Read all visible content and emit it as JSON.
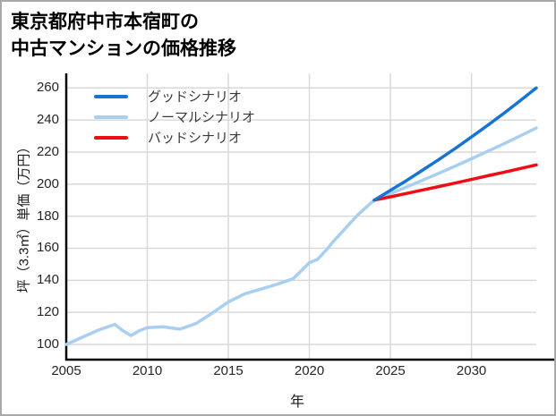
{
  "title": {
    "line1": "東京都府中市本宿町の",
    "line2": "中古マンションの価格推移"
  },
  "chart_data": {
    "type": "line",
    "xlabel": "年",
    "ylabel": "坪（3.3㎡）単価（万円）",
    "xticks": [
      2005,
      2010,
      2015,
      2020,
      2025,
      2030
    ],
    "yticks": [
      100,
      120,
      140,
      160,
      180,
      200,
      220,
      240,
      260
    ],
    "xlim": [
      2005,
      2035
    ],
    "ylim": [
      90,
      269
    ],
    "grid": true,
    "colors": {
      "good": "#1874d2",
      "normal": "#a8cff2",
      "bad": "#ee0d14",
      "gridline": "#d9d9d9",
      "spine": "#000000"
    },
    "legend": {
      "position": "upper-left",
      "entries": [
        "グッドシナリオ",
        "ノーマルシナリオ",
        "バッドシナリオ"
      ]
    },
    "history": {
      "color": "#a8cff2",
      "points": [
        [
          2005,
          100
        ],
        [
          2006,
          104.5
        ],
        [
          2007,
          109
        ],
        [
          2008,
          112.5
        ],
        [
          2008.5,
          108.5
        ],
        [
          2009,
          105.5
        ],
        [
          2009.5,
          108.5
        ],
        [
          2010,
          110.5
        ],
        [
          2011,
          111
        ],
        [
          2012,
          109.5
        ],
        [
          2013,
          113
        ],
        [
          2014,
          119.5
        ],
        [
          2015,
          126.5
        ],
        [
          2016,
          131.5
        ],
        [
          2017,
          134.5
        ],
        [
          2018,
          137.5
        ],
        [
          2019,
          141
        ],
        [
          2019.5,
          146
        ],
        [
          2020,
          151
        ],
        [
          2020.5,
          153
        ],
        [
          2021,
          158.5
        ],
        [
          2021.5,
          164.5
        ],
        [
          2022,
          170
        ],
        [
          2022.5,
          175.5
        ],
        [
          2023,
          181
        ],
        [
          2023.5,
          185.5
        ],
        [
          2024,
          190
        ]
      ]
    },
    "scenarios": [
      {
        "name": "グッドシナリオ",
        "color": "#1874d2",
        "points": [
          [
            2024,
            190
          ],
          [
            2025,
            196.1
          ],
          [
            2026,
            202.3
          ],
          [
            2027,
            208.8
          ],
          [
            2028,
            215.4
          ],
          [
            2029,
            222.3
          ],
          [
            2030,
            229.4
          ],
          [
            2031,
            236.7
          ],
          [
            2032,
            244.2
          ],
          [
            2033,
            252
          ],
          [
            2034,
            260
          ]
        ]
      },
      {
        "name": "ノーマルシナリオ",
        "color": "#a8cff2",
        "points": [
          [
            2024,
            190
          ],
          [
            2025,
            194.1
          ],
          [
            2026,
            198.2
          ],
          [
            2027,
            202.5
          ],
          [
            2028,
            206.8
          ],
          [
            2029,
            211.3
          ],
          [
            2030,
            215.8
          ],
          [
            2031,
            220.5
          ],
          [
            2032,
            225.2
          ],
          [
            2033,
            230.1
          ],
          [
            2034,
            235
          ]
        ]
      },
      {
        "name": "バッドシナリオ",
        "color": "#ee0d14",
        "points": [
          [
            2024,
            190
          ],
          [
            2025,
            192.1
          ],
          [
            2026,
            194.2
          ],
          [
            2027,
            196.4
          ],
          [
            2028,
            198.5
          ],
          [
            2029,
            200.7
          ],
          [
            2030,
            202.9
          ],
          [
            2031,
            205.2
          ],
          [
            2032,
            207.4
          ],
          [
            2033,
            209.7
          ],
          [
            2034,
            212
          ]
        ]
      }
    ]
  }
}
